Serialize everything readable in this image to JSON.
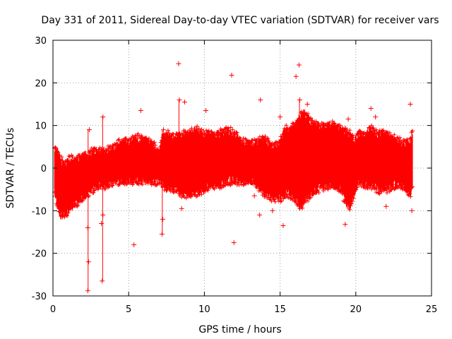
{
  "chart_data": {
    "type": "scatter",
    "title": "Day 331 of 2011, Sidereal Day-to-day VTEC variation (SDTVAR) for receiver vars",
    "xlabel": "GPS time / hours",
    "ylabel": "SDTVAR / TECUs",
    "xlim": [
      0,
      25
    ],
    "ylim": [
      -30,
      30
    ],
    "xticks": [
      0,
      5,
      10,
      15,
      20,
      25
    ],
    "yticks": [
      -30,
      -20,
      -10,
      0,
      10,
      20,
      30
    ],
    "xtick_labels": [
      "0",
      "5",
      "10",
      "15",
      "20",
      "25"
    ],
    "ytick_labels": [
      "-30",
      "-20",
      "-10",
      "0",
      "10",
      "20",
      "30"
    ],
    "grid": true,
    "marker": "+",
    "color": "#ff0000",
    "series": [
      {
        "name": "SDTVAR",
        "envelope": {
          "hours": [
            0.1,
            0.3,
            0.5,
            0.8,
            1.0,
            1.3,
            1.6,
            2.0,
            2.3,
            2.6,
            3.0,
            3.5,
            4.0,
            4.5,
            5.0,
            5.5,
            6.0,
            6.5,
            7.0,
            7.2,
            7.5,
            8.0,
            8.5,
            9.0,
            9.5,
            10.0,
            10.5,
            11.0,
            11.5,
            12.0,
            12.5,
            13.0,
            13.5,
            14.0,
            14.5,
            15.0,
            15.3,
            15.6,
            16.0,
            16.3,
            16.6,
            17.0,
            17.5,
            18.0,
            18.5,
            19.0,
            19.3,
            19.6,
            19.9,
            20.2,
            20.5,
            21.0,
            21.5,
            22.0,
            22.5,
            23.0,
            23.3,
            23.6,
            23.75
          ],
          "upper": [
            5,
            4,
            2,
            1,
            2,
            2,
            2,
            3,
            3,
            4,
            4,
            4,
            5,
            6,
            6,
            7,
            7,
            6,
            4,
            7,
            8,
            7,
            8,
            8,
            9,
            8,
            8,
            8,
            9,
            8,
            6,
            6,
            6,
            7,
            5,
            6,
            9,
            9,
            10,
            12,
            13,
            11,
            10,
            10,
            10,
            9,
            9,
            8,
            6,
            8,
            8,
            9,
            8,
            8,
            7,
            6,
            6,
            6,
            9
          ],
          "lower": [
            -6,
            -9,
            -11,
            -11,
            -10,
            -9,
            -8,
            -7,
            -6,
            -5,
            -4,
            -4,
            -3,
            -3,
            -3,
            -3,
            -3,
            -3,
            -3,
            -4,
            -5,
            -5,
            -6,
            -6,
            -6,
            -5,
            -4,
            -4,
            -3,
            -3,
            -3,
            -3,
            -4,
            -6,
            -7,
            -7,
            -6,
            -6,
            -7,
            -9,
            -8,
            -6,
            -5,
            -4,
            -4,
            -5,
            -8,
            -9,
            -6,
            -3,
            -4,
            -4,
            -5,
            -5,
            -4,
            -4,
            -5,
            -6,
            -4
          ]
        },
        "outliers": [
          {
            "x": 2.3,
            "y": -28.8
          },
          {
            "x": 2.35,
            "y": -22
          },
          {
            "x": 2.3,
            "y": -14
          },
          {
            "x": 2.4,
            "y": 9
          },
          {
            "x": 3.25,
            "y": -26.5
          },
          {
            "x": 3.3,
            "y": -11
          },
          {
            "x": 3.3,
            "y": 12
          },
          {
            "x": 3.2,
            "y": -13
          },
          {
            "x": 5.35,
            "y": -18
          },
          {
            "x": 5.8,
            "y": 13.5
          },
          {
            "x": 7.2,
            "y": -15.5
          },
          {
            "x": 7.25,
            "y": -12
          },
          {
            "x": 7.3,
            "y": 9
          },
          {
            "x": 8.3,
            "y": 24.5
          },
          {
            "x": 8.35,
            "y": 16
          },
          {
            "x": 8.7,
            "y": 15.5
          },
          {
            "x": 8.5,
            "y": -9.5
          },
          {
            "x": 10.1,
            "y": 13.5
          },
          {
            "x": 11.8,
            "y": 21.8
          },
          {
            "x": 11.95,
            "y": -17.5
          },
          {
            "x": 13.3,
            "y": -6.5
          },
          {
            "x": 13.7,
            "y": 16
          },
          {
            "x": 13.65,
            "y": -11
          },
          {
            "x": 15.2,
            "y": -13.5
          },
          {
            "x": 14.5,
            "y": -10
          },
          {
            "x": 15.0,
            "y": 12
          },
          {
            "x": 16.05,
            "y": 21.5
          },
          {
            "x": 16.25,
            "y": 24.2
          },
          {
            "x": 16.3,
            "y": 16
          },
          {
            "x": 16.8,
            "y": 15
          },
          {
            "x": 19.3,
            "y": -13.2
          },
          {
            "x": 19.5,
            "y": 11.5
          },
          {
            "x": 21.3,
            "y": 12
          },
          {
            "x": 22.0,
            "y": -9
          },
          {
            "x": 23.6,
            "y": 15
          },
          {
            "x": 23.7,
            "y": -10
          },
          {
            "x": 21.0,
            "y": 14
          }
        ]
      }
    ]
  }
}
